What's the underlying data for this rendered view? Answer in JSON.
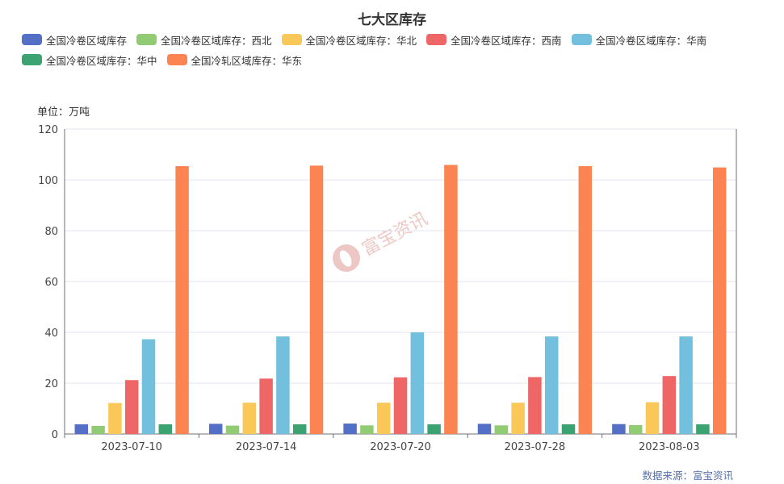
{
  "chart_data": {
    "type": "bar",
    "title": "七大区库存",
    "unit_label": "单位：万吨",
    "source_label": "数据来源：富宝资讯",
    "watermark_text": "富宝资讯",
    "categories": [
      "2023-07-10",
      "2023-07-14",
      "2023-07-20",
      "2023-07-28",
      "2023-08-03"
    ],
    "ylim": [
      0,
      120
    ],
    "yticks": [
      0,
      20,
      40,
      60,
      80,
      100,
      120
    ],
    "grid": true,
    "legend_position": "top",
    "series": [
      {
        "name": "全国冷卷区域库存",
        "color": "#5470c6",
        "values": [
          3.8,
          4.0,
          4.1,
          4.0,
          3.9
        ]
      },
      {
        "name": "全国冷卷区域库存：西北",
        "color": "#91cc75",
        "values": [
          3.2,
          3.3,
          3.4,
          3.4,
          3.5
        ]
      },
      {
        "name": "全国冷卷区域库存：华北",
        "color": "#fac858",
        "values": [
          12.2,
          12.3,
          12.3,
          12.3,
          12.5
        ]
      },
      {
        "name": "全国冷卷区域库存：西南",
        "color": "#ee6666",
        "values": [
          21.2,
          21.8,
          22.3,
          22.4,
          22.8
        ]
      },
      {
        "name": "全国冷卷区域库存：华南",
        "color": "#73c0de",
        "values": [
          37.3,
          38.4,
          40.0,
          38.4,
          38.4
        ]
      },
      {
        "name": "全国冷卷区域库存：华中",
        "color": "#3ba272",
        "values": [
          3.8,
          3.8,
          3.8,
          3.8,
          3.8
        ]
      },
      {
        "name": "全国冷轧区域库存：华东",
        "color": "#fc8452",
        "values": [
          105.4,
          105.6,
          105.9,
          105.4,
          104.9
        ]
      }
    ]
  }
}
